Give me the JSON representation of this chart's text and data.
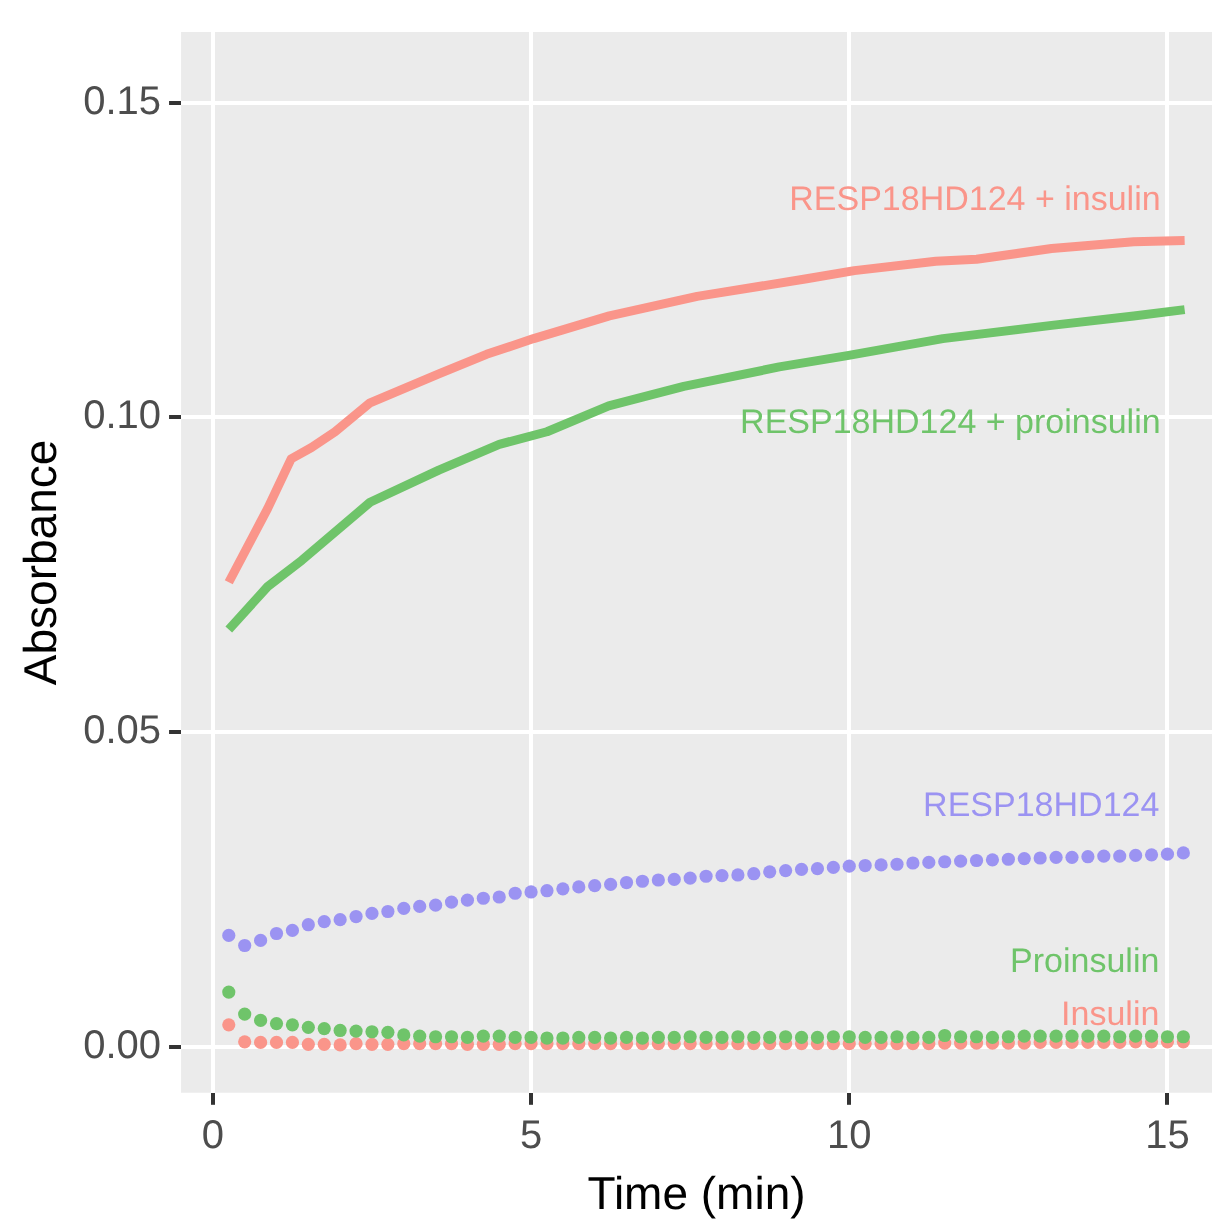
{
  "chart_data": {
    "type": "line",
    "xlabel": "Time (min)",
    "ylabel": "Absorbance",
    "xlim": [
      -0.5,
      15.7
    ],
    "xticks": [
      0,
      5,
      10,
      15
    ],
    "ylim": [
      -0.0073,
      0.1612
    ],
    "yticks": [
      {
        "value": 0,
        "label": "0.00"
      },
      {
        "value": 0.05,
        "label": "0.05"
      },
      {
        "value": 0.1,
        "label": "0.10"
      },
      {
        "value": 0.15,
        "label": "0.15"
      }
    ],
    "grid": true,
    "legend": false,
    "series": [
      {
        "name": "RESP18HD124 + insulin",
        "type": "line",
        "marker": "none",
        "color": "#fa958a",
        "x": [
          0.25,
          0.86,
          1.23,
          1.55,
          1.92,
          2.47,
          3.55,
          4.3,
          5.04,
          6.23,
          7.61,
          9.33,
          10.08,
          11.36,
          12.0,
          13.18,
          14.47,
          15.27
        ],
        "values": [
          0.0738,
          0.0855,
          0.0934,
          0.0952,
          0.0977,
          0.1023,
          0.1069,
          0.11,
          0.1125,
          0.1161,
          0.1192,
          0.122,
          0.1233,
          0.1248,
          0.1251,
          0.1268,
          0.1279,
          0.1281
        ]
      },
      {
        "name": "RESP18HD124 + proinsulin",
        "type": "line",
        "marker": "none",
        "color": "#6fc46a",
        "x": [
          0.25,
          0.86,
          1.4,
          2.47,
          3.55,
          4.5,
          5.25,
          6.22,
          7.4,
          8.9,
          9.97,
          11.47,
          13.18,
          14.47,
          15.27
        ],
        "values": [
          0.0663,
          0.0731,
          0.0773,
          0.0865,
          0.0916,
          0.0957,
          0.0977,
          0.1018,
          0.1049,
          0.108,
          0.1098,
          0.1125,
          0.1146,
          0.1161,
          0.1171
        ]
      },
      {
        "name": "RESP18HD124",
        "type": "scatter",
        "marker": "circle",
        "color": "#9b93f2",
        "x": [
          0.25,
          0.5,
          0.75,
          1,
          1.25,
          1.5,
          1.75,
          2,
          2.25,
          2.5,
          2.75,
          3,
          3.25,
          3.5,
          3.75,
          4,
          4.25,
          4.5,
          4.75,
          5,
          5.25,
          5.5,
          5.75,
          6,
          6.25,
          6.5,
          6.75,
          7,
          7.25,
          7.5,
          7.75,
          8,
          8.25,
          8.5,
          8.75,
          9,
          9.25,
          9.5,
          9.75,
          10,
          10.25,
          10.5,
          10.75,
          11,
          11.25,
          11.5,
          11.75,
          12,
          12.25,
          12.5,
          12.75,
          13,
          13.25,
          13.5,
          13.75,
          14,
          14.25,
          14.5,
          14.75,
          15,
          15.25
        ],
        "values": [
          0.0177,
          0.0161,
          0.0169,
          0.018,
          0.0185,
          0.0194,
          0.0199,
          0.0202,
          0.0207,
          0.0212,
          0.0215,
          0.022,
          0.0223,
          0.0225,
          0.023,
          0.0233,
          0.0236,
          0.0238,
          0.0244,
          0.0246,
          0.0248,
          0.0251,
          0.0254,
          0.0256,
          0.0258,
          0.0261,
          0.0263,
          0.0265,
          0.0266,
          0.0268,
          0.0271,
          0.0272,
          0.0273,
          0.0275,
          0.0278,
          0.028,
          0.0282,
          0.0283,
          0.0285,
          0.0287,
          0.0288,
          0.0289,
          0.029,
          0.0292,
          0.0293,
          0.0294,
          0.0295,
          0.0296,
          0.0297,
          0.0298,
          0.0299,
          0.03,
          0.0301,
          0.0301,
          0.0302,
          0.0303,
          0.0303,
          0.0304,
          0.0305,
          0.0306,
          0.0308
        ]
      },
      {
        "name": "Proinsulin",
        "type": "scatter",
        "marker": "circle",
        "color": "#6fc46a",
        "x": [
          0.25,
          0.5,
          0.75,
          1,
          1.25,
          1.5,
          1.75,
          2,
          2.25,
          2.5,
          2.75,
          3,
          3.25,
          3.5,
          3.75,
          4,
          4.25,
          4.5,
          4.75,
          5,
          5.25,
          5.5,
          5.75,
          6,
          6.25,
          6.5,
          6.75,
          7,
          7.25,
          7.5,
          7.75,
          8,
          8.25,
          8.5,
          8.75,
          9,
          9.25,
          9.5,
          9.75,
          10,
          10.25,
          10.5,
          10.75,
          11,
          11.25,
          11.5,
          11.75,
          12,
          12.25,
          12.5,
          12.75,
          13,
          13.25,
          13.5,
          13.75,
          14,
          14.25,
          14.5,
          14.75,
          15,
          15.25
        ],
        "values": [
          0.0087,
          0.0052,
          0.0042,
          0.0037,
          0.0035,
          0.0031,
          0.0029,
          0.0026,
          0.0025,
          0.0024,
          0.0023,
          0.0019,
          0.0017,
          0.0016,
          0.0016,
          0.0015,
          0.0017,
          0.0017,
          0.0015,
          0.0015,
          0.0014,
          0.0014,
          0.0015,
          0.0015,
          0.0014,
          0.0015,
          0.0014,
          0.0015,
          0.0015,
          0.0016,
          0.0015,
          0.0015,
          0.0016,
          0.0015,
          0.0015,
          0.0016,
          0.0015,
          0.0015,
          0.0016,
          0.0016,
          0.0015,
          0.0015,
          0.0016,
          0.0015,
          0.0015,
          0.0018,
          0.0016,
          0.0016,
          0.0015,
          0.0016,
          0.0017,
          0.0017,
          0.0017,
          0.0017,
          0.0017,
          0.0017,
          0.0016,
          0.0017,
          0.0017,
          0.0016,
          0.0016
        ]
      },
      {
        "name": "Insulin",
        "type": "scatter",
        "marker": "circle",
        "color": "#fa958a",
        "x": [
          0.25,
          0.5,
          0.75,
          1,
          1.25,
          1.5,
          1.75,
          2,
          2.25,
          2.5,
          2.75,
          3,
          3.25,
          3.5,
          3.75,
          4,
          4.25,
          4.5,
          4.75,
          5,
          5.25,
          5.5,
          5.75,
          6,
          6.25,
          6.5,
          6.75,
          7,
          7.25,
          7.5,
          7.75,
          8,
          8.25,
          8.5,
          8.75,
          9,
          9.25,
          9.5,
          9.75,
          10,
          10.25,
          10.5,
          10.75,
          11,
          11.25,
          11.5,
          11.75,
          12,
          12.25,
          12.5,
          12.75,
          13,
          13.25,
          13.5,
          13.75,
          14,
          14.25,
          14.5,
          14.75,
          15,
          15.25
        ],
        "values": [
          0.0035,
          0.0008,
          0.0007,
          0.0007,
          0.0007,
          0.0004,
          0.0004,
          0.0003,
          0.0005,
          0.0004,
          0.0004,
          0.0005,
          0.0005,
          0.0005,
          0.0005,
          0.0004,
          0.0004,
          0.0004,
          0.0005,
          0.0005,
          0.0005,
          0.0005,
          0.0005,
          0.0005,
          0.0005,
          0.0005,
          0.0005,
          0.0005,
          0.0005,
          0.0005,
          0.0005,
          0.0005,
          0.0005,
          0.0005,
          0.0005,
          0.0005,
          0.0005,
          0.0005,
          0.0005,
          0.0005,
          0.0005,
          0.0005,
          0.0005,
          0.0005,
          0.0005,
          0.0006,
          0.0006,
          0.0006,
          0.0006,
          0.0006,
          0.0006,
          0.0007,
          0.0007,
          0.0007,
          0.0007,
          0.0007,
          0.0007,
          0.0008,
          0.0008,
          0.0008,
          0.0008
        ]
      }
    ]
  }
}
